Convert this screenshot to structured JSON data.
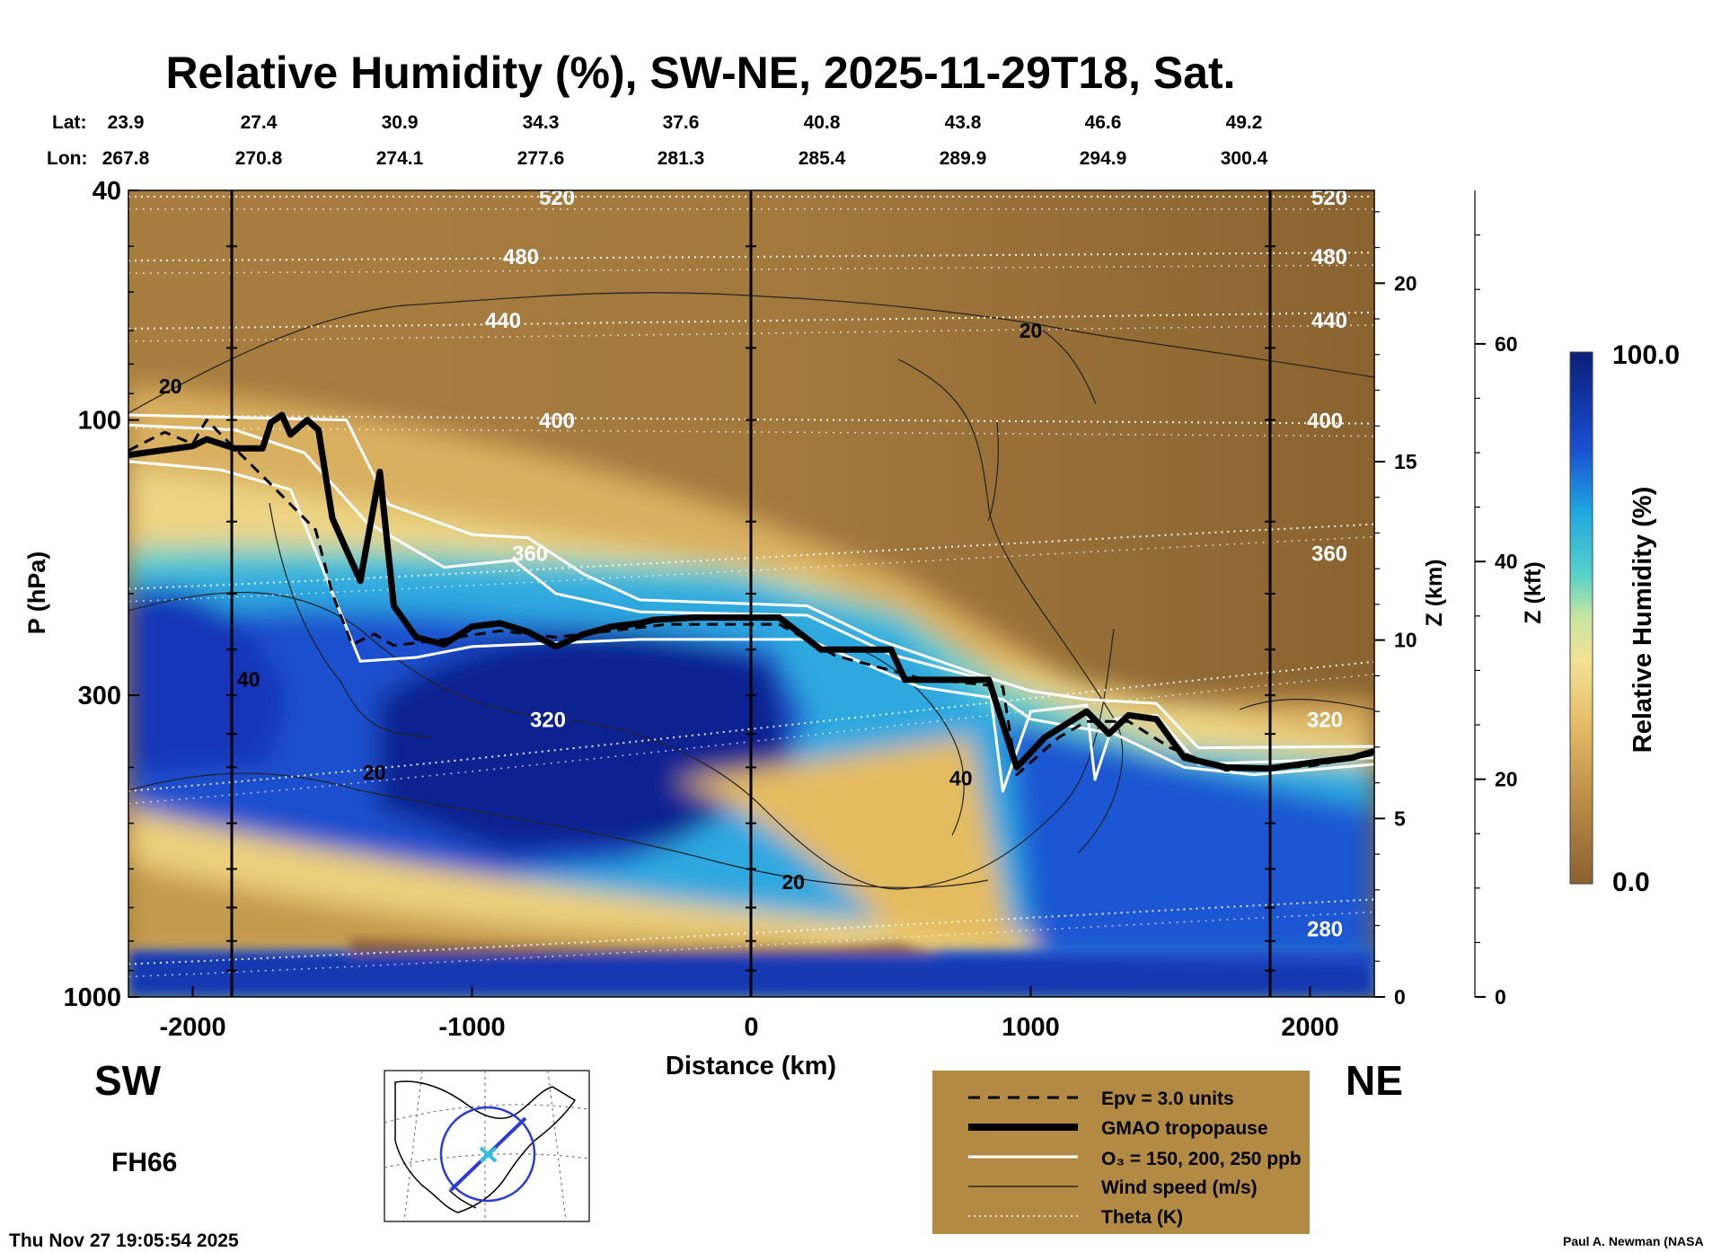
{
  "chart_data": {
    "type": "heatmap",
    "title": "Relative Humidity (%), SW-NE, 2025-11-29T18, Sat.",
    "xlabel": "Distance (km)",
    "ylabel": "P (hPa)",
    "y2label": "Z (km)",
    "y3label": "Z (kft)",
    "xlim": [
      -2230,
      2230
    ],
    "ylim_hpa": [
      1000,
      40
    ],
    "y_scale": "log",
    "x_ticks": [
      "-2000",
      "-1000",
      "0",
      "1000",
      "2000"
    ],
    "x_tick_values": [
      -2000,
      -1000,
      0,
      1000,
      2000
    ],
    "y_ticks": [
      "40",
      "100",
      "300",
      "1000"
    ],
    "y_tick_values": [
      40,
      100,
      300,
      1000
    ],
    "z_km_ticks": [
      "0",
      "5",
      "10",
      "15",
      "20"
    ],
    "z_km_values": [
      0,
      5,
      10,
      15,
      20
    ],
    "z_kft_ticks": [
      "0",
      "20",
      "40",
      "60"
    ],
    "z_kft_values": [
      0,
      20,
      40,
      60
    ],
    "colorbar": {
      "label": "Relative Humidity (%)",
      "max": "100.0",
      "min": "0.0"
    },
    "lat_label": "Lat:",
    "lon_label": "Lon:",
    "lat": [
      "23.9",
      "27.4",
      "30.9",
      "34.3",
      "37.6",
      "40.8",
      "43.8",
      "46.6",
      "49.2"
    ],
    "lon": [
      "267.8",
      "270.8",
      "274.1",
      "277.6",
      "281.3",
      "285.4",
      "289.9",
      "294.9",
      "300.4"
    ],
    "theta_levels": [
      {
        "label": "520",
        "p": 41
      },
      {
        "label": "480",
        "p": 52
      },
      {
        "label": "440",
        "p": 67
      },
      {
        "label": "400",
        "p": 100
      },
      {
        "label": "360",
        "p": 170
      },
      {
        "label": "320",
        "p": 330
      },
      {
        "label": "280",
        "p": 760
      }
    ],
    "tropopause_hpa": [
      {
        "x": -2230,
        "p": 115
      },
      {
        "x": -2000,
        "p": 111
      },
      {
        "x": -1950,
        "p": 108
      },
      {
        "x": -1850,
        "p": 112
      },
      {
        "x": -1750,
        "p": 112
      },
      {
        "x": -1720,
        "p": 101
      },
      {
        "x": -1680,
        "p": 98
      },
      {
        "x": -1650,
        "p": 106
      },
      {
        "x": -1590,
        "p": 100
      },
      {
        "x": -1550,
        "p": 104
      },
      {
        "x": -1500,
        "p": 148
      },
      {
        "x": -1400,
        "p": 190
      },
      {
        "x": -1330,
        "p": 123
      },
      {
        "x": -1280,
        "p": 210
      },
      {
        "x": -1200,
        "p": 238
      },
      {
        "x": -1100,
        "p": 245
      },
      {
        "x": -1000,
        "p": 228
      },
      {
        "x": -900,
        "p": 225
      },
      {
        "x": -800,
        "p": 233
      },
      {
        "x": -700,
        "p": 247
      },
      {
        "x": -600,
        "p": 235
      },
      {
        "x": -500,
        "p": 228
      },
      {
        "x": -400,
        "p": 225
      },
      {
        "x": -350,
        "p": 222
      },
      {
        "x": -200,
        "p": 220
      },
      {
        "x": 100,
        "p": 220
      },
      {
        "x": 250,
        "p": 250
      },
      {
        "x": 500,
        "p": 250
      },
      {
        "x": 550,
        "p": 282
      },
      {
        "x": 850,
        "p": 282
      },
      {
        "x": 950,
        "p": 400
      },
      {
        "x": 1050,
        "p": 355
      },
      {
        "x": 1200,
        "p": 320
      },
      {
        "x": 1280,
        "p": 350
      },
      {
        "x": 1350,
        "p": 325
      },
      {
        "x": 1450,
        "p": 330
      },
      {
        "x": 1550,
        "p": 385
      },
      {
        "x": 1700,
        "p": 400
      },
      {
        "x": 1850,
        "p": 402
      },
      {
        "x": 2000,
        "p": 393
      },
      {
        "x": 2150,
        "p": 385
      },
      {
        "x": 2230,
        "p": 375
      }
    ],
    "epv_3pvu_hpa": [
      {
        "x": -2230,
        "p": 113
      },
      {
        "x": -2100,
        "p": 105
      },
      {
        "x": -2000,
        "p": 110
      },
      {
        "x": -1950,
        "p": 100
      },
      {
        "x": -1850,
        "p": 112
      },
      {
        "x": -1750,
        "p": 125
      },
      {
        "x": -1650,
        "p": 140
      },
      {
        "x": -1560,
        "p": 155
      },
      {
        "x": -1500,
        "p": 200
      },
      {
        "x": -1430,
        "p": 245
      },
      {
        "x": -1350,
        "p": 235
      },
      {
        "x": -1280,
        "p": 246
      },
      {
        "x": -1100,
        "p": 240
      },
      {
        "x": -900,
        "p": 232
      },
      {
        "x": -700,
        "p": 238
      },
      {
        "x": -300,
        "p": 226
      },
      {
        "x": 100,
        "p": 226
      },
      {
        "x": 300,
        "p": 256
      },
      {
        "x": 600,
        "p": 280
      },
      {
        "x": 900,
        "p": 290
      },
      {
        "x": 950,
        "p": 412
      },
      {
        "x": 1100,
        "p": 355
      },
      {
        "x": 1200,
        "p": 333
      },
      {
        "x": 1350,
        "p": 333
      },
      {
        "x": 1500,
        "p": 370
      },
      {
        "x": 1700,
        "p": 405
      },
      {
        "x": 2000,
        "p": 398
      },
      {
        "x": 2230,
        "p": 380
      }
    ],
    "o3_contours_hpa": [
      [
        {
          "x": -2230,
          "p": 98
        },
        {
          "x": -1450,
          "p": 100
        },
        {
          "x": -1300,
          "p": 140
        },
        {
          "x": -1000,
          "p": 158
        },
        {
          "x": -800,
          "p": 160
        },
        {
          "x": -600,
          "p": 185
        },
        {
          "x": -400,
          "p": 205
        },
        {
          "x": 200,
          "p": 210
        },
        {
          "x": 450,
          "p": 240
        },
        {
          "x": 800,
          "p": 275
        },
        {
          "x": 1000,
          "p": 295
        },
        {
          "x": 1200,
          "p": 305
        },
        {
          "x": 1450,
          "p": 310
        },
        {
          "x": 1600,
          "p": 370
        },
        {
          "x": 2230,
          "p": 368
        }
      ],
      [
        {
          "x": -2230,
          "p": 102
        },
        {
          "x": -1850,
          "p": 104
        },
        {
          "x": -1600,
          "p": 114
        },
        {
          "x": -1380,
          "p": 150
        },
        {
          "x": -1100,
          "p": 180
        },
        {
          "x": -850,
          "p": 175
        },
        {
          "x": -700,
          "p": 200
        },
        {
          "x": -400,
          "p": 215
        },
        {
          "x": 200,
          "p": 218
        },
        {
          "x": 500,
          "p": 255
        },
        {
          "x": 850,
          "p": 283
        },
        {
          "x": 900,
          "p": 440
        },
        {
          "x": 1000,
          "p": 320
        },
        {
          "x": 1200,
          "p": 312
        },
        {
          "x": 1230,
          "p": 420
        },
        {
          "x": 1300,
          "p": 330
        },
        {
          "x": 1450,
          "p": 325
        },
        {
          "x": 1600,
          "p": 395
        },
        {
          "x": 2230,
          "p": 385
        }
      ],
      [
        {
          "x": -2230,
          "p": 118
        },
        {
          "x": -1900,
          "p": 122
        },
        {
          "x": -1650,
          "p": 132
        },
        {
          "x": -1400,
          "p": 262
        },
        {
          "x": -1200,
          "p": 258
        },
        {
          "x": -1000,
          "p": 247
        },
        {
          "x": -400,
          "p": 240
        },
        {
          "x": 200,
          "p": 240
        },
        {
          "x": 600,
          "p": 290
        },
        {
          "x": 900,
          "p": 305
        },
        {
          "x": 1000,
          "p": 330
        },
        {
          "x": 1300,
          "p": 350
        },
        {
          "x": 1550,
          "p": 400
        },
        {
          "x": 1800,
          "p": 412
        },
        {
          "x": 2230,
          "p": 395
        }
      ]
    ],
    "wind_labels": [
      {
        "label": "20",
        "x": -2080,
        "p": 90
      },
      {
        "label": "20",
        "x": 1000,
        "p": 72
      },
      {
        "label": "40",
        "x": -1800,
        "p": 290
      },
      {
        "label": "20",
        "x": -1350,
        "p": 420
      },
      {
        "label": "40",
        "x": 750,
        "p": 430
      },
      {
        "label": "20",
        "x": 150,
        "p": 650
      }
    ],
    "legend": {
      "epv": "Epv = 3.0 units",
      "trop": "GMAO tropopause",
      "o3": "O₃ = 150, 200, 250 ppb",
      "wind": "Wind speed (m/s)",
      "theta": "Theta (K)"
    },
    "legend_placement": "bottom-right",
    "colors": {
      "plot_brown": "#b28a44",
      "legend_bg": "#b28a44",
      "rh_high": "#0d1f8a",
      "rh_mid": "#23c1dc"
    }
  },
  "labels": {
    "sw": "SW",
    "ne": "NE",
    "forecast_hour": "FH66",
    "timestamp": "Thu Nov 27 19:05:54 2025",
    "credit": "Paul A. Newman (NASA"
  }
}
